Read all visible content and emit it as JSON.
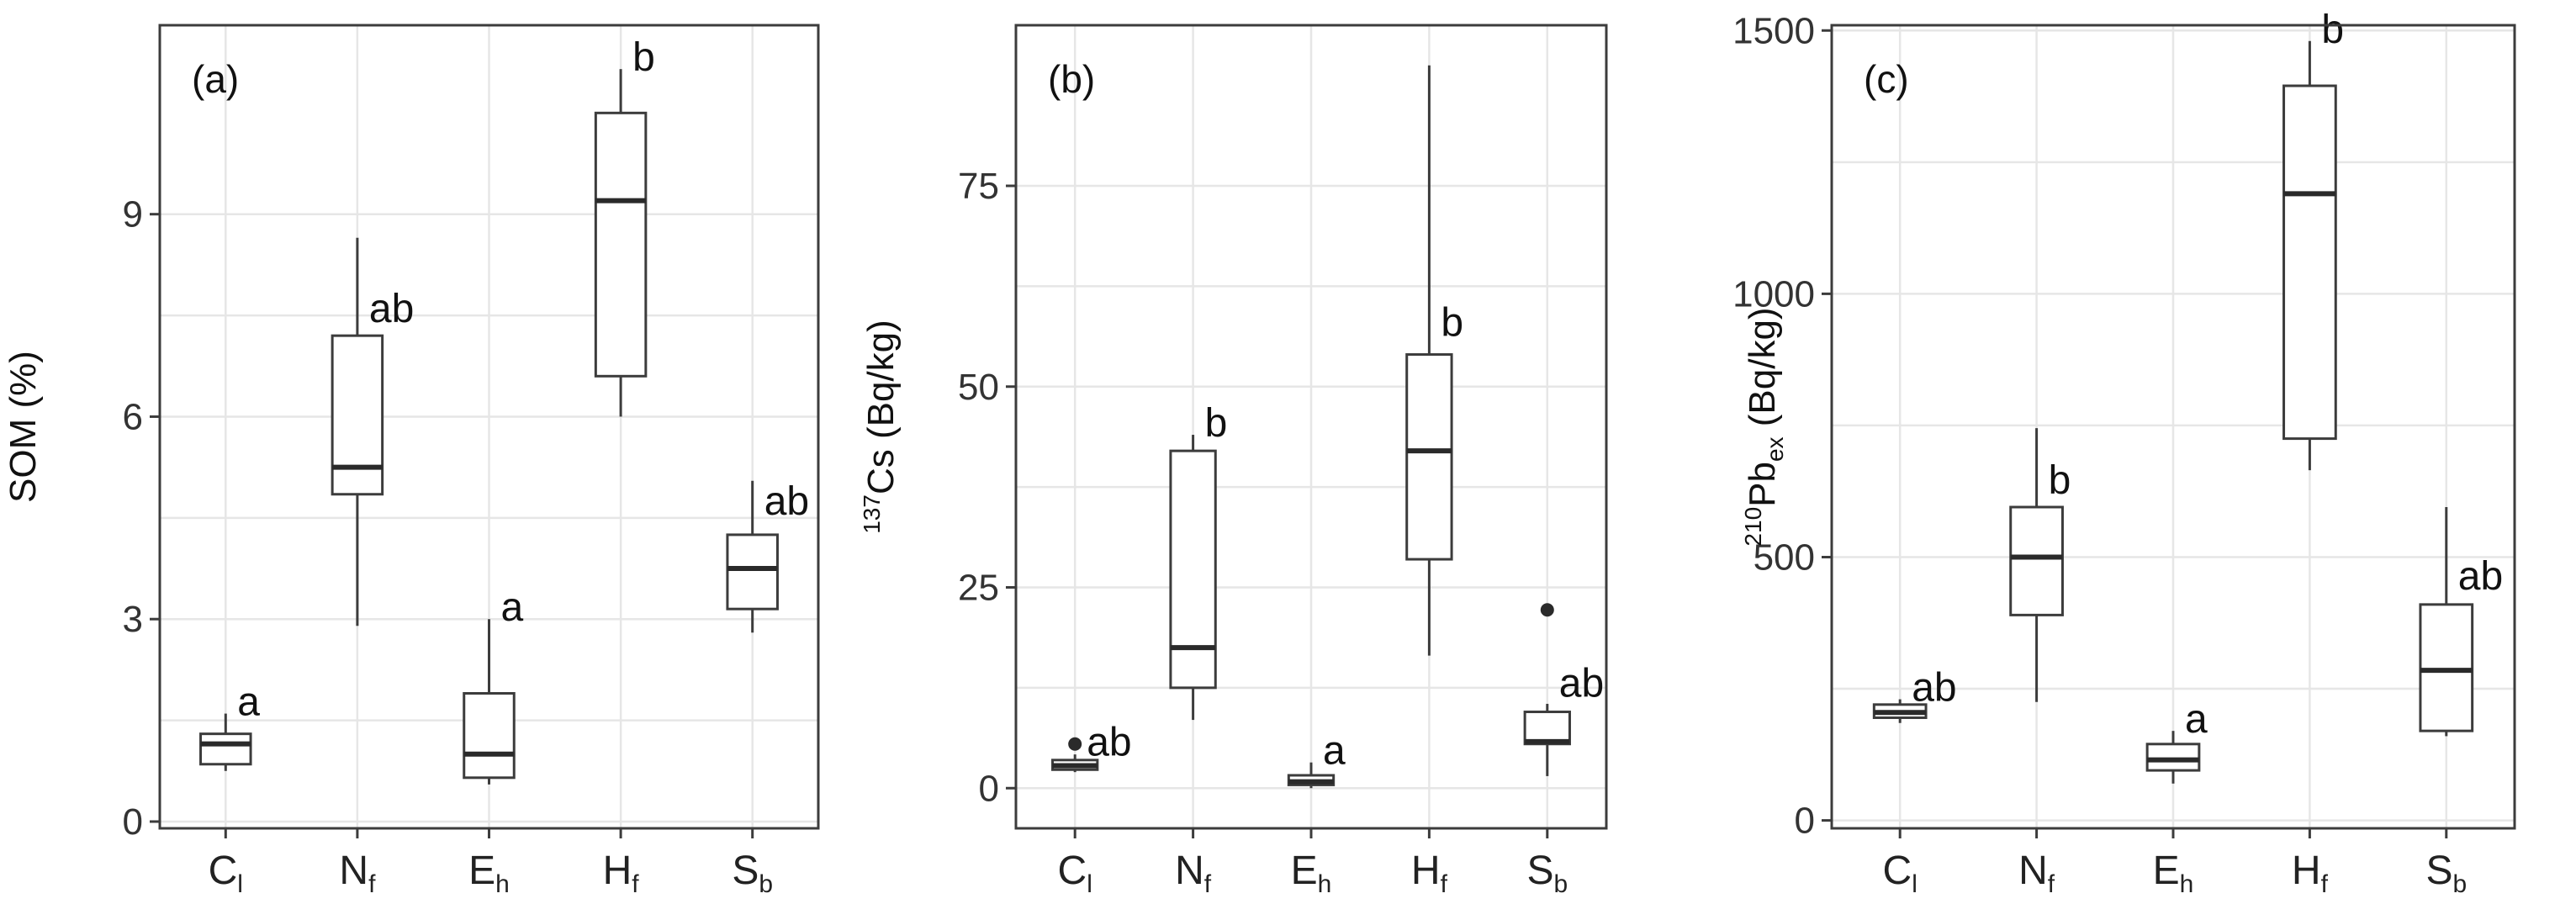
{
  "colors": {
    "box_fill": "#ffffff",
    "box_stroke": "#3c3c3c",
    "grid": "#e6e6e6",
    "text": "#111111"
  },
  "chart_data": [
    {
      "type": "box",
      "panel_label": "(a)",
      "ylabel": "SOM (%)",
      "ylabel_parts": {
        "sup": "",
        "main": "SOM (%)",
        "sub": ""
      },
      "ylim": [
        -0.1,
        11.8
      ],
      "yticks": [
        0,
        3,
        6,
        9
      ],
      "yticklabels": [
        "0",
        "3",
        "6",
        "9"
      ],
      "grid": true,
      "categories": [
        {
          "main": "C",
          "sub": "l"
        },
        {
          "main": "N",
          "sub": "f"
        },
        {
          "main": "E",
          "sub": "h"
        },
        {
          "main": "H",
          "sub": "f"
        },
        {
          "main": "S",
          "sub": "b"
        }
      ],
      "boxes": [
        {
          "min": 0.75,
          "q1": 0.85,
          "median": 1.15,
          "q3": 1.3,
          "max": 1.6,
          "outliers": [],
          "letter": "a"
        },
        {
          "min": 2.9,
          "q1": 4.85,
          "median": 5.25,
          "q3": 7.2,
          "max": 8.65,
          "outliers": [],
          "letter": "ab"
        },
        {
          "min": 0.55,
          "q1": 0.65,
          "median": 1.0,
          "q3": 1.9,
          "max": 3.0,
          "outliers": [],
          "letter": "a"
        },
        {
          "min": 6.0,
          "q1": 6.6,
          "median": 9.2,
          "q3": 10.5,
          "max": 11.15,
          "outliers": [],
          "letter": "b"
        },
        {
          "min": 2.8,
          "q1": 3.15,
          "median": 3.75,
          "q3": 4.25,
          "max": 5.05,
          "outliers": [],
          "letter": "ab"
        }
      ]
    },
    {
      "type": "box",
      "panel_label": "(b)",
      "ylabel": "137Cs (Bq/kg)",
      "ylabel_parts": {
        "sup": "137",
        "main": "Cs (Bq/kg)",
        "sub": ""
      },
      "ylim": [
        -5,
        95
      ],
      "yticks": [
        0,
        25,
        50,
        75
      ],
      "yticklabels": [
        "0",
        "25",
        "50",
        "75"
      ],
      "grid": true,
      "categories": [
        {
          "main": "C",
          "sub": "l"
        },
        {
          "main": "N",
          "sub": "f"
        },
        {
          "main": "E",
          "sub": "h"
        },
        {
          "main": "H",
          "sub": "f"
        },
        {
          "main": "S",
          "sub": "b"
        }
      ],
      "boxes": [
        {
          "min": 2,
          "q1": 2.3,
          "median": 2.8,
          "q3": 3.5,
          "max": 4.2,
          "outliers": [
            5.5
          ],
          "letter": "ab"
        },
        {
          "min": 8.5,
          "q1": 12.5,
          "median": 17.5,
          "q3": 42,
          "max": 44,
          "outliers": [],
          "letter": "b"
        },
        {
          "min": 0,
          "q1": 0.4,
          "median": 0.8,
          "q3": 1.6,
          "max": 3.2,
          "outliers": [],
          "letter": "a"
        },
        {
          "min": 16.5,
          "q1": 28.5,
          "median": 42,
          "q3": 54,
          "max": 90,
          "outliers": [],
          "letter": "b"
        },
        {
          "min": 1.5,
          "q1": 5.5,
          "median": 5.8,
          "q3": 9.5,
          "max": 10.5,
          "outliers": [
            22.2
          ],
          "letter": "ab"
        }
      ]
    },
    {
      "type": "box",
      "panel_label": "(c)",
      "ylabel": "210Pbex (Bq/kg)",
      "ylabel_parts": {
        "sup": "210",
        "main": "Pb",
        "sub": "ex",
        "tail": " (Bq/kg)"
      },
      "ylim": [
        -15,
        1510
      ],
      "yticks": [
        0,
        500,
        1000,
        1500
      ],
      "yticklabels": [
        "0",
        "500",
        "1000",
        "1500"
      ],
      "grid": true,
      "categories": [
        {
          "main": "C",
          "sub": "l"
        },
        {
          "main": "N",
          "sub": "f"
        },
        {
          "main": "E",
          "sub": "h"
        },
        {
          "main": "H",
          "sub": "f"
        },
        {
          "main": "S",
          "sub": "b"
        }
      ],
      "boxes": [
        {
          "min": 185,
          "q1": 195,
          "median": 205,
          "q3": 220,
          "max": 230,
          "outliers": [],
          "letter": "ab"
        },
        {
          "min": 225,
          "q1": 390,
          "median": 500,
          "q3": 595,
          "max": 745,
          "outliers": [],
          "letter": "b"
        },
        {
          "min": 70,
          "q1": 95,
          "median": 115,
          "q3": 145,
          "max": 170,
          "outliers": [],
          "letter": "a"
        },
        {
          "min": 665,
          "q1": 725,
          "median": 1190,
          "q3": 1395,
          "max": 1480,
          "outliers": [],
          "letter": "b"
        },
        {
          "min": 160,
          "q1": 170,
          "median": 285,
          "q3": 410,
          "max": 595,
          "outliers": [],
          "letter": "ab"
        }
      ]
    }
  ]
}
